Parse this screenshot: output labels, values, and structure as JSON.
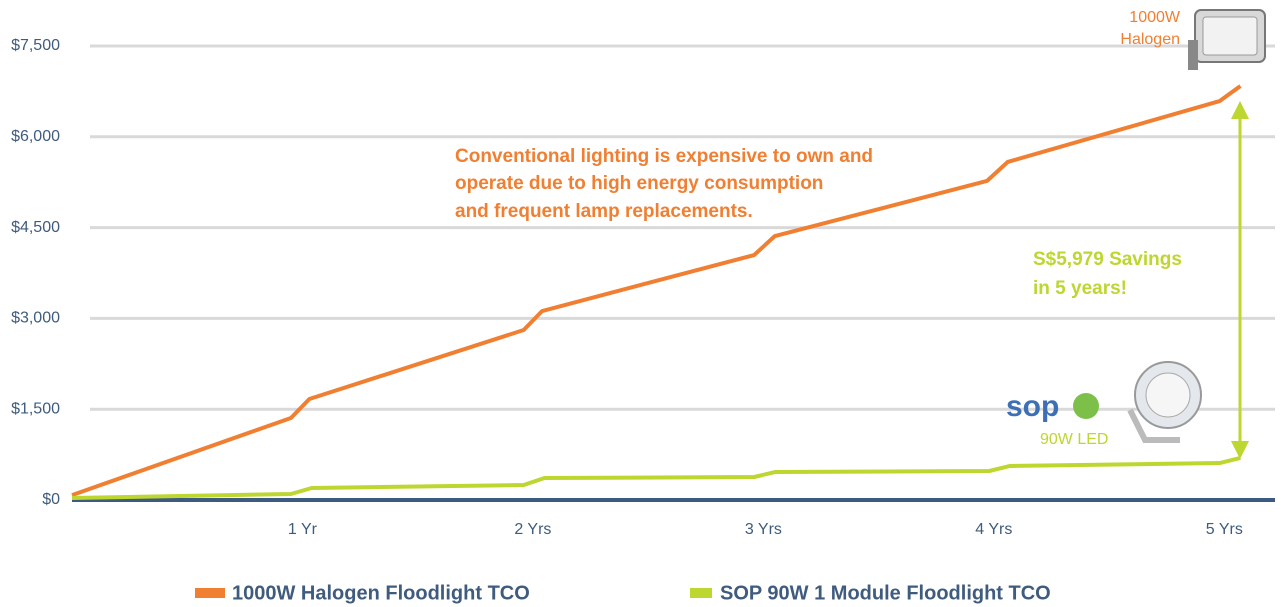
{
  "chart_data": {
    "type": "line",
    "xlim": [
      0,
      5.22
    ],
    "xticks": [
      {
        "value": 1,
        "label": "1 Yr"
      },
      {
        "value": 2,
        "label": "2 Yrs"
      },
      {
        "value": 3,
        "label": "3 Yrs"
      },
      {
        "value": 4,
        "label": "4 Yrs"
      },
      {
        "value": 5,
        "label": "5 Yrs"
      }
    ],
    "ylim": [
      0,
      7500
    ],
    "yticks": [
      {
        "value": 0,
        "label": "$0"
      },
      {
        "value": 1500,
        "label": "$1,500"
      },
      {
        "value": 3000,
        "label": "$3,000"
      },
      {
        "value": 4500,
        "label": "$4,500"
      },
      {
        "value": 6000,
        "label": "$6,000"
      },
      {
        "value": 7500,
        "label": "$7,500"
      }
    ],
    "grid": true,
    "legend": "bottom",
    "series": [
      {
        "name": "1000W Halogen Floodlight TCO",
        "color": "#f07f32",
        "x": [
          0,
          0.95,
          1.03,
          1.96,
          2.04,
          2.96,
          3.05,
          3.97,
          4.06,
          4.98,
          5.07
        ],
        "values": [
          80,
          1355,
          1668,
          2808,
          3122,
          4047,
          4361,
          5270,
          5584,
          6591,
          6839
        ]
      },
      {
        "name": "SOP 90W 1 Module Floodlight TCO",
        "color": "#bed630",
        "x": [
          0,
          0.95,
          1.04,
          1.96,
          2.05,
          2.96,
          3.05,
          3.98,
          4.07,
          4.98,
          5.07
        ],
        "values": [
          33,
          99,
          198,
          248,
          363,
          380,
          462,
          479,
          562,
          611,
          694
        ]
      }
    ],
    "annotation": [
      "Conventional lighting is expensive to own and",
      "operate due to high energy consumption",
      "and frequent lamp replacements."
    ],
    "savings": [
      "S$5,979 Savings",
      "in 5 years!"
    ],
    "halogen_label": [
      "1000W",
      "Halogen"
    ],
    "led_label": "90W LED",
    "logo": "sop"
  }
}
